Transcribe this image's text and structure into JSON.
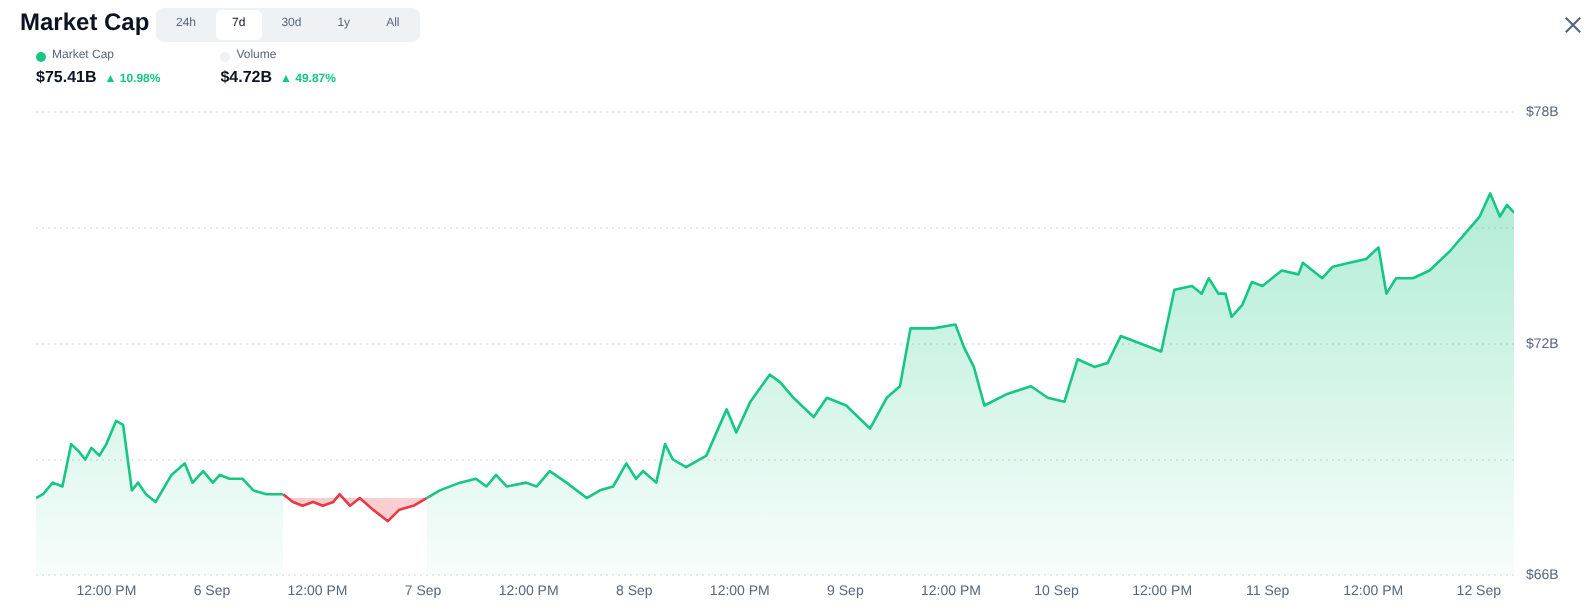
{
  "chart_data": {
    "type": "area",
    "title": "Market Cap",
    "annotations": [
      "24h",
      "7d",
      "30d",
      "1y",
      "All",
      "$75.41B",
      "▲ 10.98%",
      "Volume",
      "$4.72B",
      "▲ 49.87%"
    ],
    "x": [
      "--09-05T04:00",
      "--09-05T04:48",
      "--09-05T05:54",
      "--09-05T07:00",
      "--09-05T08:00",
      "--09-05T08:54",
      "--09-05T09:36",
      "--09-05T10:18",
      "--09-05T11:12",
      "--09-05T12:00",
      "--09-05T13:06",
      "--09-05T13:54",
      "--09-05T14:54",
      "--09-05T15:36",
      "--09-05T16:30",
      "--09-05T17:36",
      "--09-05T19:24",
      "--09-05T20:54",
      "--09-05T21:48",
      "--09-05T23:00",
      "--09-06T00:06",
      "--09-06T00:54",
      "--09-06T02:00",
      "--09-06T03:30",
      "--09-06T04:42",
      "--09-06T06:12",
      "--09-06T08:06",
      "--09-06T09:12",
      "--09-06T10:18",
      "--09-06T11:30",
      "--09-06T12:36",
      "--09-06T13:48",
      "--09-06T14:30",
      "--09-06T15:42",
      "--09-06T16:48",
      "--09-06T18:18",
      "--09-06T20:00",
      "--09-06T21:18",
      "--09-06T22:54",
      "--09-07T00:24",
      "--09-07T01:54",
      "--09-07T04:12",
      "--09-07T06:00",
      "--09-07T07:12",
      "--09-07T08:18",
      "--09-07T09:30",
      "--09-07T11:42",
      "--09-07T12:54",
      "--09-07T14:24",
      "--09-07T16:18",
      "--09-07T18:36",
      "--09-07T20:06",
      "--09-07T21:36",
      "--09-07T23:06",
      "--09-08T00:12",
      "--09-08T01:00",
      "--09-08T02:30",
      "--09-08T03:30",
      "--09-08T04:24",
      "--09-08T05:54",
      "--09-08T08:12",
      "--09-08T10:30",
      "--09-08T11:36",
      "--09-08T13:12",
      "--09-08T15:24",
      "--09-08T16:36",
      "--09-08T18:06",
      "--09-08T20:24",
      "--09-08T21:54",
      "--09-09T00:06",
      "--09-09T02:48",
      "--09-09T04:42",
      "--09-09T06:12",
      "--09-09T07:24",
      "--09-09T10:00",
      "--09-09T12:30",
      "--09-09T13:30",
      "--09-09T14:36",
      "--09-09T15:48",
      "--09-09T18:24",
      "--09-09T21:06",
      "--09-09T23:00",
      "--09-10T00:54",
      "--09-10T02:24",
      "--09-10T04:18",
      "--09-10T05:48",
      "--09-10T07:18",
      "--09-10T09:36",
      "--09-10T11:54",
      "--09-10T13:24",
      "--09-10T15:24",
      "--09-10T16:30",
      "--09-10T17:18",
      "--09-10T18:24",
      "--09-10T19:12",
      "--09-10T19:54",
      "--09-10T21:06",
      "--09-10T22:12",
      "--09-10T23:24",
      "--09-11T01:36",
      "--09-11T03:30",
      "--09-11T04:00",
      "--09-11T06:12",
      "--09-11T07:24",
      "--09-11T09:18",
      "--09-11T11:12",
      "--09-11T12:36",
      "--09-11T13:30",
      "--09-11T14:36",
      "--09-11T16:30",
      "--09-11T18:24",
      "--09-11T20:42",
      "--09-11T22:36",
      "--09-12T00:06",
      "--09-12T01:18",
      "--09-12T02:24",
      "--09-12T03:12",
      "--09-12T04:00"
    ],
    "series": [
      {
        "name": "Market Cap",
        "color": "#16c784",
        "values": [
          68.0,
          68.1,
          68.4,
          68.3,
          69.4,
          69.2,
          69.0,
          69.3,
          69.1,
          69.4,
          70.0,
          69.9,
          68.2,
          68.4,
          68.1,
          67.9,
          68.6,
          68.9,
          68.4,
          68.7,
          68.4,
          68.6,
          68.5,
          68.5,
          68.2,
          68.1,
          68.1,
          null,
          null,
          null,
          null,
          null,
          null,
          null,
          null,
          null,
          null,
          null,
          null,
          68.0,
          68.2,
          68.4,
          68.5,
          68.3,
          68.6,
          68.3,
          68.4,
          68.3,
          68.7,
          68.4,
          68.0,
          68.2,
          68.3,
          68.9,
          68.5,
          68.7,
          68.4,
          69.4,
          69.0,
          68.8,
          69.1,
          70.3,
          69.7,
          70.5,
          71.2,
          71.0,
          70.6,
          70.1,
          70.6,
          70.4,
          69.8,
          70.6,
          70.9,
          72.4,
          72.4,
          72.5,
          71.9,
          71.4,
          70.4,
          70.7,
          70.9,
          70.6,
          70.5,
          71.6,
          71.4,
          71.5,
          72.2,
          72.0,
          71.8,
          73.4,
          73.5,
          73.3,
          73.7,
          73.3,
          73.3,
          72.7,
          73.0,
          73.6,
          73.5,
          73.9,
          73.8,
          74.1,
          73.7,
          74.0,
          74.1,
          74.2,
          74.5,
          73.3,
          73.7,
          73.7,
          73.9,
          74.4,
          74.9,
          75.3,
          75.9,
          75.3,
          75.6,
          75.4
        ]
      },
      {
        "color": "#ea3943",
        "values": [
          null,
          null,
          null,
          null,
          null,
          null,
          null,
          null,
          null,
          null,
          null,
          null,
          null,
          null,
          null,
          null,
          null,
          null,
          null,
          null,
          null,
          null,
          null,
          null,
          null,
          null,
          68.1,
          67.9,
          67.8,
          67.9,
          67.8,
          67.9,
          68.1,
          67.8,
          68.0,
          67.7,
          67.4,
          67.7,
          67.8,
          68.0,
          null,
          null,
          null,
          null,
          null,
          null,
          null,
          null,
          null,
          null,
          null,
          null,
          null,
          null,
          null,
          null,
          null,
          null,
          null,
          null,
          null,
          null,
          null,
          null,
          null,
          null,
          null,
          null,
          null,
          null,
          null,
          null,
          null,
          null,
          null,
          null,
          null,
          null,
          null,
          null,
          null,
          null,
          null,
          null,
          null,
          null,
          null,
          null,
          null,
          null,
          null,
          null,
          null,
          null,
          null,
          null,
          null,
          null,
          null,
          null,
          null,
          null,
          null,
          null,
          null,
          null,
          null,
          null,
          null,
          null,
          null,
          null,
          null,
          null,
          null,
          null,
          null,
          null
        ]
      }
    ],
    "xlim": [
      "--09-05T04:00",
      "--09-12T04:00"
    ],
    "xticks": [
      {
        "value": "--09-05T12:00",
        "label": "12:00 PM"
      },
      {
        "value": "--09-06",
        "label": "6 Sep"
      },
      {
        "value": "--09-06T12:00",
        "label": "12:00 PM"
      },
      {
        "value": "--09-07",
        "label": "7 Sep"
      },
      {
        "value": "--09-07T12:00",
        "label": "12:00 PM"
      },
      {
        "value": "--09-08",
        "label": "8 Sep"
      },
      {
        "value": "--09-08T12:00",
        "label": "12:00 PM"
      },
      {
        "value": "--09-09",
        "label": "9 Sep"
      },
      {
        "value": "--09-09T12:00",
        "label": "12:00 PM"
      },
      {
        "value": "--09-10",
        "label": "10 Sep"
      },
      {
        "value": "--09-10T12:00",
        "label": "12:00 PM"
      },
      {
        "value": "--09-11",
        "label": "11 Sep"
      },
      {
        "value": "--09-11T12:00",
        "label": "12:00 PM"
      },
      {
        "value": "--09-12",
        "label": "12 Sep"
      }
    ],
    "ylim": [
      66,
      78
    ],
    "yticks": [
      {
        "value": 66,
        "label": "$66B"
      },
      {
        "value": 69,
        "label": null
      },
      {
        "value": 72,
        "label": "$72B"
      },
      {
        "value": 75,
        "label": null
      },
      {
        "value": 78,
        "label": "$78B"
      }
    ],
    "grid": "y",
    "legend": "top left",
    "marker": "none",
    "line_style": "solid"
  }
}
